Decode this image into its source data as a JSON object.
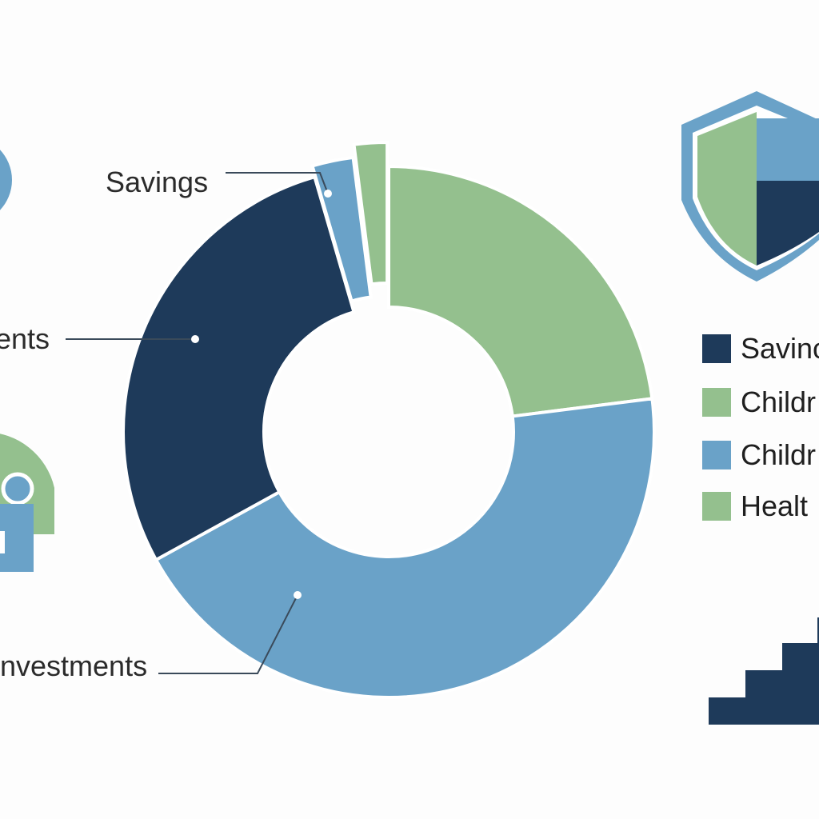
{
  "colors": {
    "dark_navy": "#1e3a5a",
    "steel_blue": "#6aa2c8",
    "sage_green": "#94c08e",
    "background": "#fdfdfd"
  },
  "chart_data": {
    "type": "pie",
    "donut": true,
    "slices": [
      {
        "label": "",
        "value": 23,
        "color": "#94c08e"
      },
      {
        "label": "Investments",
        "value": 44,
        "color": "#6aa2c8"
      },
      {
        "label": "",
        "value": 28.5,
        "color": "#1e3a5a"
      },
      {
        "label": "Savings",
        "value": 2.5,
        "color": "#6aa2c8"
      },
      {
        "label": "",
        "value": 2,
        "color": "#94c08e"
      }
    ],
    "callouts": [
      {
        "text": "Savings",
        "slice": 3
      },
      {
        "text": "ents",
        "slice": 2
      },
      {
        "text": "nvestments",
        "slice": 1
      }
    ],
    "legend": {
      "placement": "right",
      "entries": [
        {
          "text": "Savinc",
          "color": "#1e3a5a"
        },
        {
          "text": "Childr",
          "color": "#94c08e"
        },
        {
          "text": "Childr",
          "color": "#6aa2c8"
        },
        {
          "text": "Healt",
          "color": "#94c08e"
        }
      ]
    }
  },
  "icons": [
    "shield-icon",
    "family-icon",
    "bar-steps-icon",
    "coin-icon"
  ]
}
